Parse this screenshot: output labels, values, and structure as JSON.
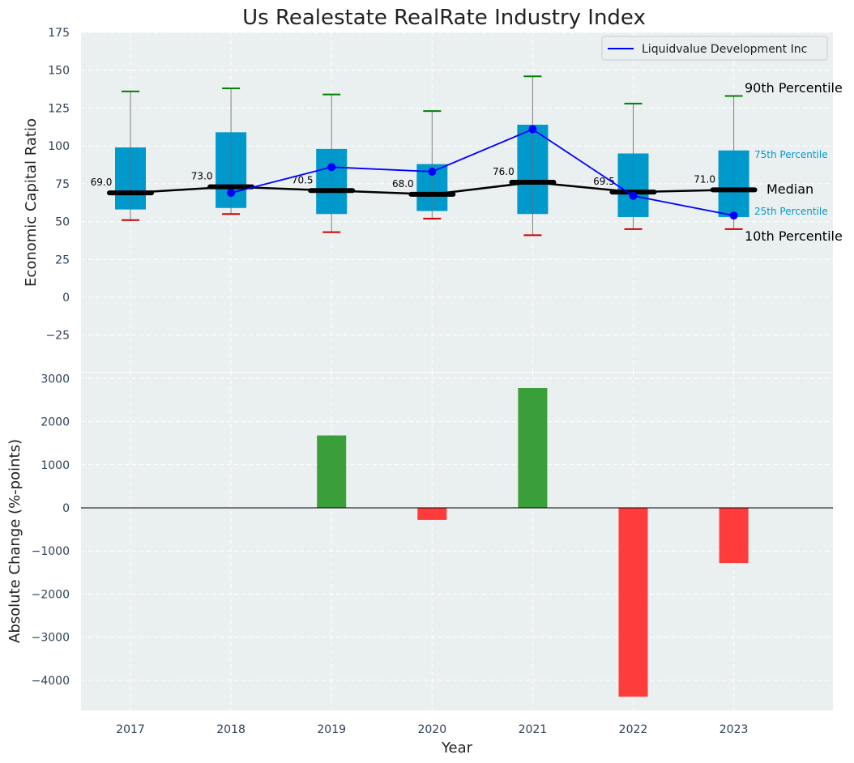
{
  "chart_data": [
    {
      "type": "box",
      "title": "Us Realestate RealRate Industry Index",
      "ylabel": "Economic Capital Ratio",
      "xlabel": "",
      "ylim": [
        -45,
        175
      ],
      "yticks": [
        -25,
        0,
        25,
        50,
        75,
        100,
        125,
        150,
        175
      ],
      "ytick_labels": [
        "−25",
        "0",
        "25",
        "50",
        "75",
        "100",
        "125",
        "150",
        "175"
      ],
      "categories": [
        "2017",
        "2018",
        "2019",
        "2020",
        "2021",
        "2022",
        "2023"
      ],
      "grid": true,
      "legend_position": "top-right",
      "boxes": [
        {
          "year": "2017",
          "p10": 51,
          "p25": 58,
          "median": 69.0,
          "p75": 99,
          "p90": 136,
          "median_label": "69.0"
        },
        {
          "year": "2018",
          "p10": 55,
          "p25": 59,
          "median": 73.0,
          "p75": 109,
          "p90": 138,
          "median_label": "73.0"
        },
        {
          "year": "2019",
          "p10": 43,
          "p25": 55,
          "median": 70.5,
          "p75": 98,
          "p90": 134,
          "median_label": "70.5"
        },
        {
          "year": "2020",
          "p10": 52,
          "p25": 57,
          "median": 68.0,
          "p75": 88,
          "p90": 123,
          "median_label": "68.0"
        },
        {
          "year": "2021",
          "p10": 41,
          "p25": 55,
          "median": 76.0,
          "p75": 114,
          "p90": 146,
          "median_label": "76.0"
        },
        {
          "year": "2022",
          "p10": 45,
          "p25": 53,
          "median": 69.5,
          "p75": 95,
          "p90": 128,
          "median_label": "69.5"
        },
        {
          "year": "2023",
          "p10": 45,
          "p25": 53,
          "median": 71.0,
          "p75": 97,
          "p90": 133,
          "median_label": "71.0"
        }
      ],
      "series": [
        {
          "name": "Liquidvalue Development Inc",
          "color": "#0000ff",
          "x": [
            "2018",
            "2019",
            "2020",
            "2021",
            "2022",
            "2023"
          ],
          "values": [
            69,
            86,
            83,
            111,
            67,
            54
          ]
        }
      ],
      "median_line_color": "#000000",
      "box_color": "#0099cc",
      "p90_whisker_color": "#008000",
      "p10_whisker_color": "#cc0000",
      "annotations": {
        "p90": "90th Percentile",
        "p75": "75th Percentile",
        "median": "Median",
        "p25": "25th Percentile",
        "p10": "10th Percentile"
      }
    },
    {
      "type": "bar",
      "ylabel": "Absolute Change (%-points)",
      "xlabel": "Year",
      "ylim": [
        -4700,
        3200
      ],
      "yticks": [
        -4000,
        -3000,
        -2000,
        -1000,
        0,
        1000,
        2000,
        3000
      ],
      "ytick_labels": [
        "−4000",
        "−3000",
        "−2000",
        "−1000",
        "0",
        "1000",
        "2000",
        "3000"
      ],
      "categories": [
        "2017",
        "2018",
        "2019",
        "2020",
        "2021",
        "2022",
        "2023"
      ],
      "values": [
        null,
        null,
        1680,
        -280,
        2780,
        -4380,
        -1280
      ],
      "positive_color": "#3a9e3a",
      "negative_color": "#ff3c3c",
      "grid": true
    }
  ]
}
